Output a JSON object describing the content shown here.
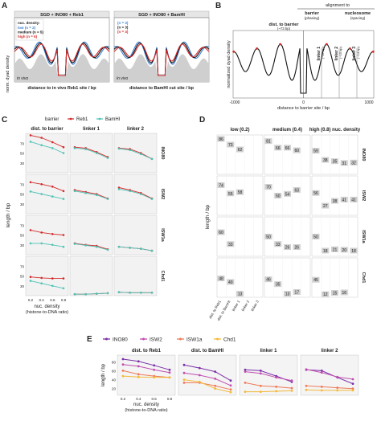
{
  "panels": {
    "A": {
      "letter": "A",
      "left_title": "SGD + INO80 + Reb1",
      "right_title": "SGD + INO80 + BamHI",
      "ylabel": "norm. dyad density",
      "left_xlabel": "distance to in vivo Reb1 site / bp",
      "right_xlabel": "distance to BamHI cut site / bp",
      "invivo_label": "in vivo",
      "legend_title": "nuc. density:",
      "legend": [
        {
          "name": "low (n = 2)",
          "color": "#3a7fd5"
        },
        {
          "name": "medium (n = 5)",
          "color": "#111111"
        },
        {
          "name": "high (n = 6)",
          "color": "#d42a2a"
        }
      ],
      "right_legend": [
        {
          "name": "(n = 3)",
          "color": "#3a7fd5"
        },
        {
          "name": "(n = 3)",
          "color": "#111111"
        },
        {
          "name": "(n = 3)",
          "color": "#d42a2a"
        }
      ]
    },
    "B": {
      "letter": "B",
      "header": "alignment to",
      "barrier_label": "barrier",
      "barrier_sub": "(phasing)",
      "nucleosome_label": "nucleosome",
      "nucleosome_sub": "(spacing)",
      "dist_label": "dist. to barrier",
      "dist_sub": "(~73 bp)",
      "linker_labels": [
        "linker 1",
        "linker 2",
        "linker 3"
      ],
      "linker_subs": [
        "(~17 bp)",
        "(~15 bp)",
        "(~14 bp)"
      ],
      "ylabel": "normalized dyad density",
      "xlabel": "distance to barrier site / bp",
      "xticks": [
        "-1000",
        "0",
        "1000"
      ]
    },
    "C": {
      "letter": "C",
      "legend_title": "barrier",
      "legend": [
        {
          "name": "Reb1",
          "color": "#d42a2a"
        },
        {
          "name": "BamHI",
          "color": "#4ec3b5"
        }
      ],
      "columns": [
        "dist. to barrier",
        "linker 1",
        "linker 2"
      ],
      "rows": [
        "INO80",
        "ISW2",
        "ISW1a",
        "Chd1"
      ],
      "ylabel": "length / bp",
      "xlabel": "nuc. density",
      "xlabel2": "(histone-to-DNA ratio)",
      "xticks": [
        "0.2",
        "0.4",
        "0.6",
        "0.8"
      ],
      "yticks": [
        "70",
        "50",
        "30"
      ]
    },
    "D": {
      "letter": "D",
      "columns": [
        "low (0.2)",
        "medium (0.4)",
        "high (0.8)"
      ],
      "column_suffix": "nuc. density",
      "rows": [
        "INO80",
        "ISW2",
        "ISW1a",
        "Chd1"
      ],
      "ylabel": "length / bp",
      "xcats": [
        "dist. to Reb1",
        "dist. to BamHI",
        "linker 1",
        "linker 2",
        "linker 3"
      ],
      "cells": [
        [
          [
            86,
            73,
            62
          ],
          [
            81,
            66,
            66,
            60
          ],
          [
            59,
            38,
            35,
            31,
            32
          ]
        ],
        [
          [
            74,
            55,
            58
          ],
          [
            70,
            50,
            54,
            63
          ],
          [
            56,
            27,
            38,
            41,
            41
          ]
        ],
        [
          [
            60,
            33
          ],
          [
            50,
            33,
            26,
            26
          ],
          [
            50,
            18,
            21,
            20,
            18
          ]
        ],
        [
          [
            48,
            40,
            13
          ],
          [
            46,
            35,
            13,
            17
          ],
          [
            45,
            12,
            15,
            16
          ]
        ]
      ]
    },
    "E": {
      "letter": "E",
      "legend": [
        {
          "name": "INO80",
          "color": "#7b2fa8"
        },
        {
          "name": "ISW2",
          "color": "#c04fb0"
        },
        {
          "name": "ISW1a",
          "color": "#ef7a58"
        },
        {
          "name": "Chd1",
          "color": "#f3b93a"
        }
      ],
      "columns": [
        "dist. to Reb1",
        "dist. to BamHI",
        "linker 1",
        "linker 2"
      ],
      "ylabel": "length / bp",
      "xlabel": "nuc. density",
      "xlabel2": "(histone-to-DNA ratio)",
      "xticks": [
        "0.2",
        "0.4",
        "0.6",
        "0.8"
      ],
      "yticks": [
        "80",
        "60",
        "40",
        "20"
      ]
    }
  },
  "chart_data": [
    {
      "type": "line",
      "panel": "A",
      "title": "SGD + INO80 + Reb1",
      "ylabel": "norm. dyad density",
      "xlabel": "distance to in vivo Reb1 site / bp"
    },
    {
      "type": "line",
      "panel": "B",
      "ylabel": "normalized dyad density",
      "xlabel": "distance to barrier site / bp",
      "xlim": [
        -1000,
        1000
      ]
    },
    {
      "type": "line",
      "panel": "C",
      "x": [
        0.2,
        0.4,
        0.6,
        0.8
      ],
      "ylabel": "length / bp",
      "xlabel": "nuc. density",
      "facets": {
        "INO80": {
          "dist. to barrier": {
            "Reb1": [
              86,
              81,
              72,
              62
            ],
            "BamHI": [
              73,
              66,
              60,
              50
            ]
          },
          "linker 1": {
            "Reb1": [
              62,
              60,
              52,
              42
            ],
            "BamHI": [
              60,
              58,
              50,
              40
            ]
          },
          "linker 2": {
            "Reb1": [
              60,
              58,
              50,
              38
            ],
            "BamHI": [
              59,
              56,
              48,
              38
            ]
          }
        },
        "ISW2": {
          "dist. to barrier": {
            "Reb1": [
              74,
              70,
              65,
              56
            ],
            "BamHI": [
              55,
              50,
              45,
              40
            ]
          },
          "linker 1": {
            "Reb1": [
              58,
              54,
              50,
              41
            ],
            "BamHI": [
              56,
              52,
              48,
              40
            ]
          },
          "linker 2": {
            "Reb1": [
              63,
              58,
              52,
              41
            ],
            "BamHI": [
              60,
              56,
              50,
              40
            ]
          }
        },
        "ISW1a": {
          "dist. to barrier": {
            "Reb1": [
              60,
              55,
              52,
              50
            ],
            "BamHI": [
              33,
              33,
              30,
              26
            ]
          },
          "linker 1": {
            "Reb1": [
              33,
              30,
              28,
              21
            ],
            "BamHI": [
              32,
              29,
              26,
              20
            ]
          },
          "linker 2": {
            "Reb1": [
              26,
              24,
              22,
              18
            ],
            "BamHI": [
              26,
              24,
              22,
              18
            ]
          }
        },
        "Chd1": {
          "dist. to barrier": {
            "Reb1": [
              48,
              46,
              45,
              45
            ],
            "BamHI": [
              40,
              35,
              30,
              25
            ]
          },
          "linker 1": {
            "Reb1": [
              13,
              13,
              14,
              15
            ],
            "BamHI": [
              13,
              13,
              14,
              15
            ]
          },
          "linker 2": {
            "Reb1": [
              17,
              16,
              16,
              16
            ],
            "BamHI": [
              17,
              16,
              16,
              16
            ]
          }
        }
      }
    },
    {
      "type": "line",
      "panel": "E",
      "x": [
        0.2,
        0.4,
        0.6,
        0.8
      ],
      "ylabel": "length / bp",
      "xlabel": "nuc. density",
      "ylim": [
        10,
        95
      ],
      "facets": {
        "dist. to Reb1": {
          "INO80": [
            86,
            81,
            72,
            62
          ],
          "ISW2": [
            74,
            70,
            62,
            56
          ],
          "ISW1a": [
            60,
            52,
            48,
            45
          ],
          "Chd1": [
            48,
            46,
            45,
            45
          ]
        },
        "dist. to BamHI": {
          "INO80": [
            73,
            66,
            58,
            38
          ],
          "ISW2": [
            55,
            50,
            42,
            27
          ],
          "ISW1a": [
            33,
            33,
            26,
            18
          ],
          "Chd1": [
            40,
            35,
            20,
            12
          ]
        },
        "linker 1": {
          "INO80": [
            62,
            60,
            48,
            35
          ],
          "ISW2": [
            58,
            54,
            45,
            38
          ],
          "ISW1a": [
            33,
            26,
            24,
            21
          ],
          "Chd1": [
            13,
            13,
            14,
            15
          ]
        },
        "linker 2": {
          "INO80": [
            62,
            60,
            45,
            31
          ],
          "ISW2": [
            63,
            56,
            46,
            41
          ],
          "ISW1a": [
            26,
            24,
            22,
            20
          ],
          "Chd1": [
            17,
            16,
            16,
            16
          ]
        }
      }
    }
  ]
}
